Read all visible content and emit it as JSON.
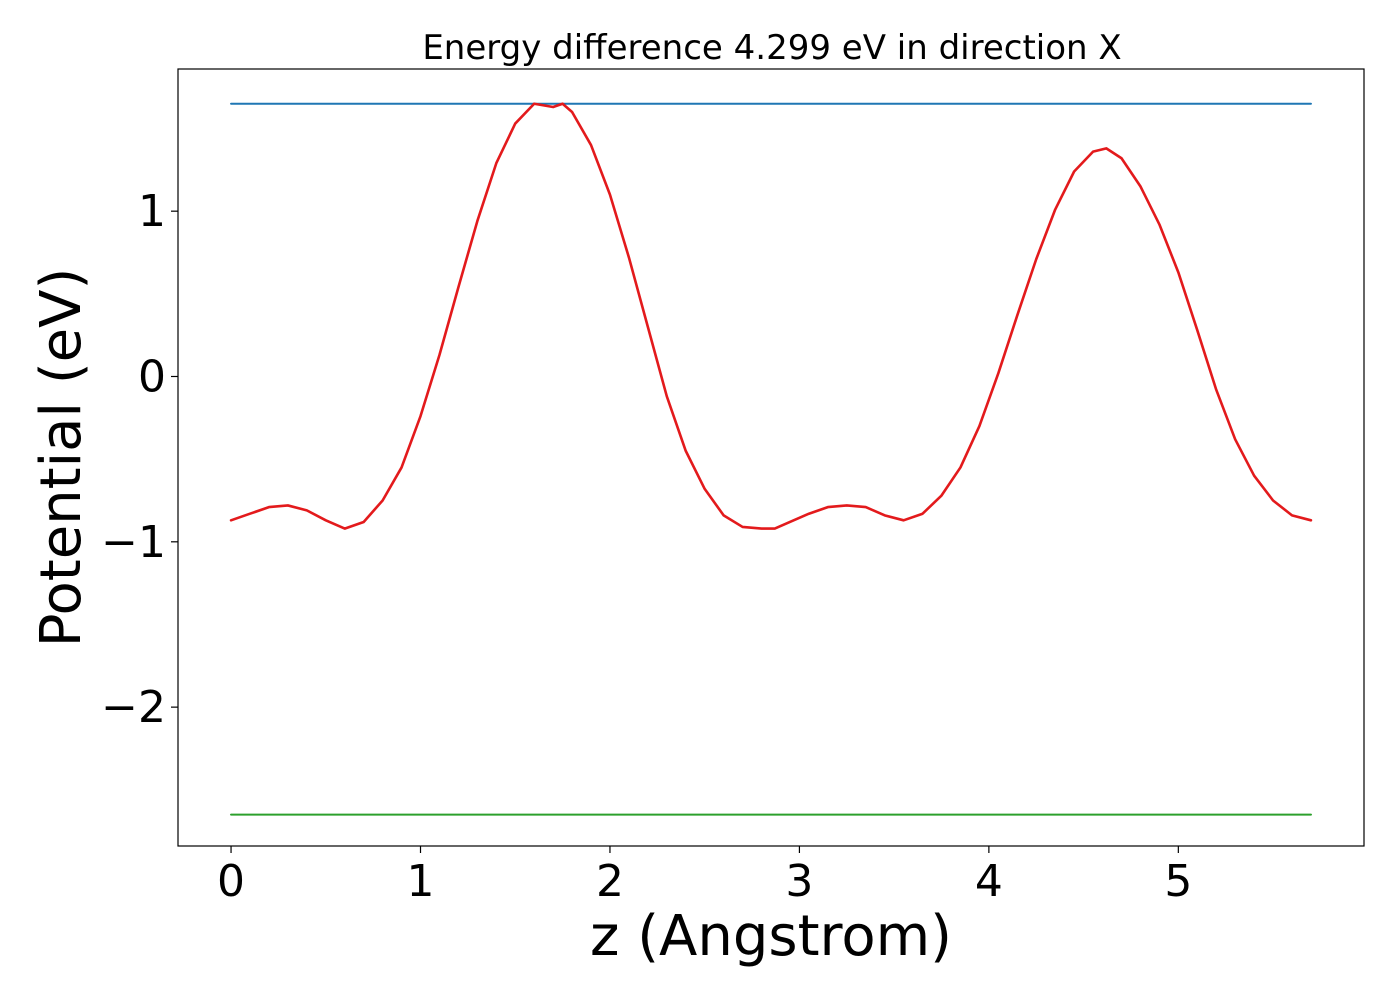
{
  "chart_data": {
    "type": "line",
    "title": "Energy difference 4.299 eV in direction X",
    "xlabel": "z (Angstrom)",
    "ylabel": "Potential (eV)",
    "xlim": [
      -0.28,
      5.98
    ],
    "ylim": [
      -2.84,
      1.86
    ],
    "xticks": [
      0,
      1,
      2,
      3,
      4,
      5
    ],
    "xtick_labels": [
      "0",
      "1",
      "2",
      "3",
      "4",
      "5"
    ],
    "yticks": [
      -2,
      -1,
      0,
      1
    ],
    "ytick_labels": [
      "−2",
      "−1",
      "0",
      "1"
    ],
    "grid": false,
    "series": [
      {
        "color": "#1f77b4",
        "x": [
          0,
          5.7
        ],
        "y": [
          1.65,
          1.65
        ]
      },
      {
        "color": "#2ca02c",
        "x": [
          0,
          5.7
        ],
        "y": [
          -2.65,
          -2.65
        ]
      },
      {
        "color": "#e31a1c",
        "x": [
          0,
          0.1,
          0.2,
          0.3,
          0.4,
          0.5,
          0.6,
          0.7,
          0.8,
          0.9,
          1.0,
          1.1,
          1.2,
          1.3,
          1.4,
          1.5,
          1.6,
          1.7,
          1.75,
          1.8,
          1.9,
          2.0,
          2.1,
          2.2,
          2.3,
          2.4,
          2.5,
          2.6,
          2.7,
          2.8,
          2.87,
          2.95,
          3.05,
          3.15,
          3.25,
          3.35,
          3.45,
          3.55,
          3.65,
          3.75,
          3.85,
          3.95,
          4.05,
          4.15,
          4.25,
          4.35,
          4.45,
          4.55,
          4.62,
          4.7,
          4.8,
          4.9,
          5.0,
          5.1,
          5.2,
          5.3,
          5.4,
          5.5,
          5.6,
          5.7
        ],
        "y": [
          -0.87,
          -0.83,
          -0.79,
          -0.78,
          -0.81,
          -0.87,
          -0.92,
          -0.88,
          -0.75,
          -0.55,
          -0.24,
          0.13,
          0.54,
          0.94,
          1.29,
          1.53,
          1.65,
          1.63,
          1.65,
          1.6,
          1.4,
          1.1,
          0.72,
          0.3,
          -0.12,
          -0.45,
          -0.68,
          -0.84,
          -0.91,
          -0.92,
          -0.92,
          -0.88,
          -0.83,
          -0.79,
          -0.78,
          -0.79,
          -0.84,
          -0.87,
          -0.83,
          -0.72,
          -0.55,
          -0.3,
          0.02,
          0.37,
          0.71,
          1.01,
          1.24,
          1.36,
          1.38,
          1.32,
          1.15,
          0.92,
          0.63,
          0.28,
          -0.08,
          -0.38,
          -0.6,
          -0.75,
          -0.84,
          -0.87
        ]
      }
    ]
  }
}
